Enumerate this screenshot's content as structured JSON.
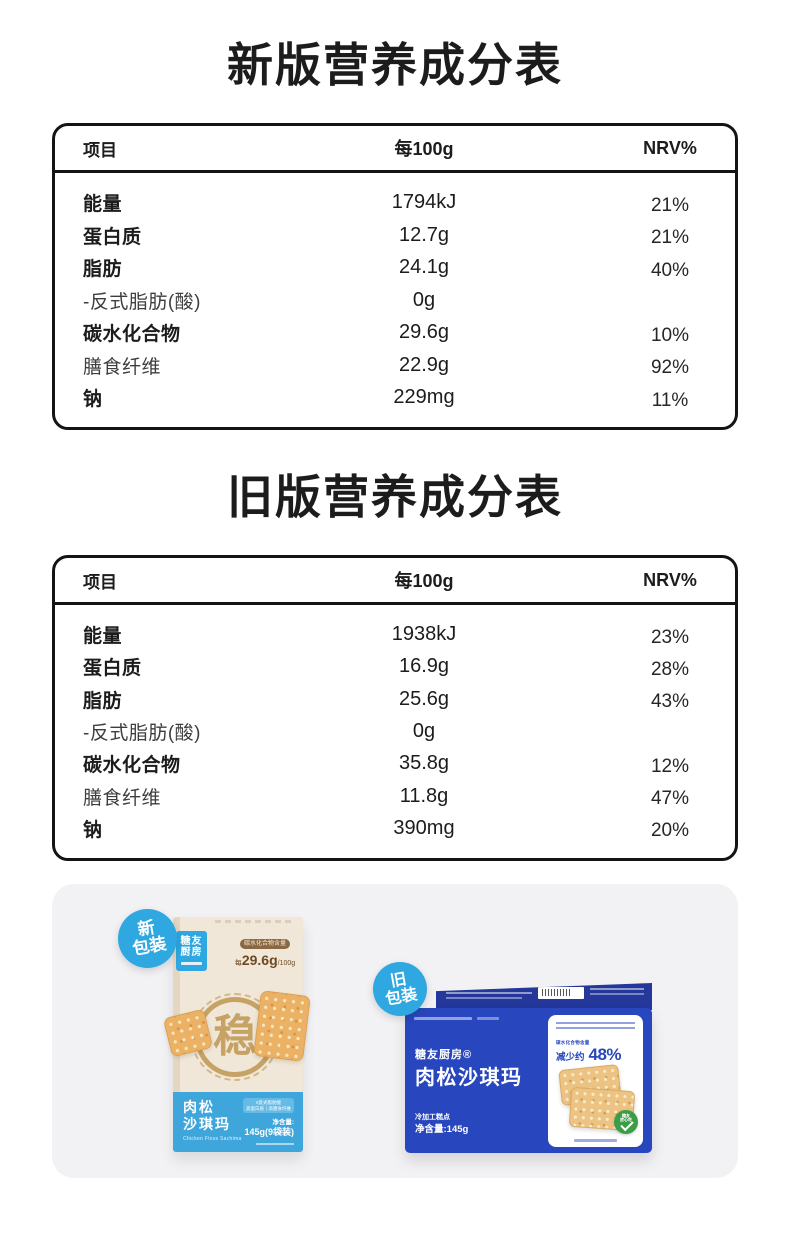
{
  "colors": {
    "badge_blue": "#2FA7E0",
    "band_blue": "#3FA6DB",
    "old_box_blue": "#2847BE",
    "seal_gold": "#C6A365",
    "shield_green": "#3B9E47",
    "container_gray": "#F2F2F4"
  },
  "tables": [
    {
      "title": "新版营养成分表",
      "headers": {
        "item": "项目",
        "amount": "每100g",
        "nrv": "NRV%"
      },
      "rows": [
        {
          "name": "能量",
          "value": "1794kJ",
          "nrv": "21%"
        },
        {
          "name": "蛋白质",
          "value": "12.7g",
          "nrv": "21%"
        },
        {
          "name": "脂肪",
          "value": "24.1g",
          "nrv": "40%"
        },
        {
          "name": "-反式脂肪(酸)",
          "value": "0g",
          "nrv": ""
        },
        {
          "name": "碳水化合物",
          "value": "29.6g",
          "nrv": "10%"
        },
        {
          "name": "膳食纤维",
          "value": "22.9g",
          "nrv": "92%"
        },
        {
          "name": "钠",
          "value": "229mg",
          "nrv": "11%"
        }
      ]
    },
    {
      "title": "旧版营养成分表",
      "headers": {
        "item": "项目",
        "amount": "每100g",
        "nrv": "NRV%"
      },
      "rows": [
        {
          "name": "能量",
          "value": "1938kJ",
          "nrv": "23%"
        },
        {
          "name": "蛋白质",
          "value": "16.9g",
          "nrv": "28%"
        },
        {
          "name": "脂肪",
          "value": "25.6g",
          "nrv": "43%"
        },
        {
          "name": "-反式脂肪(酸)",
          "value": "0g",
          "nrv": ""
        },
        {
          "name": "碳水化合物",
          "value": "35.8g",
          "nrv": "12%"
        },
        {
          "name": "膳食纤维",
          "value": "11.8g",
          "nrv": "47%"
        },
        {
          "name": "钠",
          "value": "390mg",
          "nrv": "20%"
        }
      ]
    }
  ],
  "pkg": {
    "new": {
      "badge_line1": "新",
      "badge_line2": "包装",
      "brand_line1": "糖友",
      "brand_line2": "厨房",
      "carb_label": "碳水化合物含量",
      "carb_prefix": "每",
      "carb_value": "29.6g",
      "carb_suffix": "/100g",
      "seal_char": "稳",
      "name_line1": "肉松",
      "name_line2": "沙琪玛",
      "name_en": "Chicken Floss Sachima",
      "feature_line1": "0反式脂肪酸",
      "feature_line2": "高蛋白质丨高膳食纤维",
      "net_label": "净含量:",
      "net_value": "145g(9袋装)"
    },
    "old": {
      "badge_line1": "旧",
      "badge_line2": "包装",
      "brand": "糖友厨房®",
      "name": "肉松沙琪玛",
      "carb_label": "碳水化合物含量",
      "reduce_label": "减少约",
      "reduce_value": "48%",
      "type_label": "冷加工糕点",
      "net_text": "净含量:145g",
      "shield_line1": "糖友",
      "shield_line2": "放心吃"
    }
  }
}
